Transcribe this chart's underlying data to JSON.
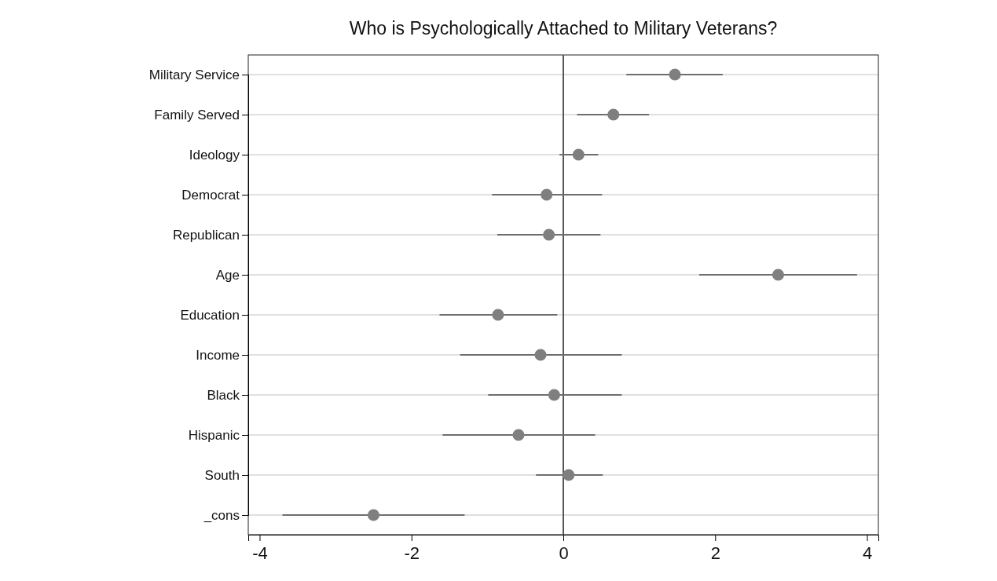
{
  "chart_data": {
    "type": "scatter",
    "orientation": "horizontal",
    "title": "Who is Psychologically Attached to Military Veterans?",
    "categories": [
      "Military Service",
      "Family Served",
      "Ideology",
      "Democrat",
      "Republican",
      "Age",
      "Education",
      "Income",
      "Black",
      "Hispanic",
      "South",
      "_cons"
    ],
    "values": [
      1.47,
      0.66,
      0.2,
      -0.22,
      -0.19,
      2.83,
      -0.86,
      -0.3,
      -0.12,
      -0.59,
      0.07,
      -2.5
    ],
    "errors": [
      [
        0.83,
        2.1
      ],
      [
        0.18,
        1.13
      ],
      [
        -0.05,
        0.46
      ],
      [
        -0.94,
        0.51
      ],
      [
        -0.87,
        0.49
      ],
      [
        1.79,
        3.87
      ],
      [
        -1.63,
        -0.08
      ],
      [
        -1.36,
        0.77
      ],
      [
        -0.99,
        0.77
      ],
      [
        -1.59,
        0.42
      ],
      [
        -0.36,
        0.52
      ],
      [
        -3.7,
        -1.3
      ]
    ],
    "color": "#7f7f7f",
    "marker": "circle",
    "grid": "y",
    "xlim": [
      -4.15,
      4.15
    ],
    "xticks": [
      -4,
      -2,
      0,
      2,
      4
    ],
    "ref_lines": [
      {
        "axis": "x",
        "value": 0,
        "color": "#555555"
      }
    ]
  }
}
